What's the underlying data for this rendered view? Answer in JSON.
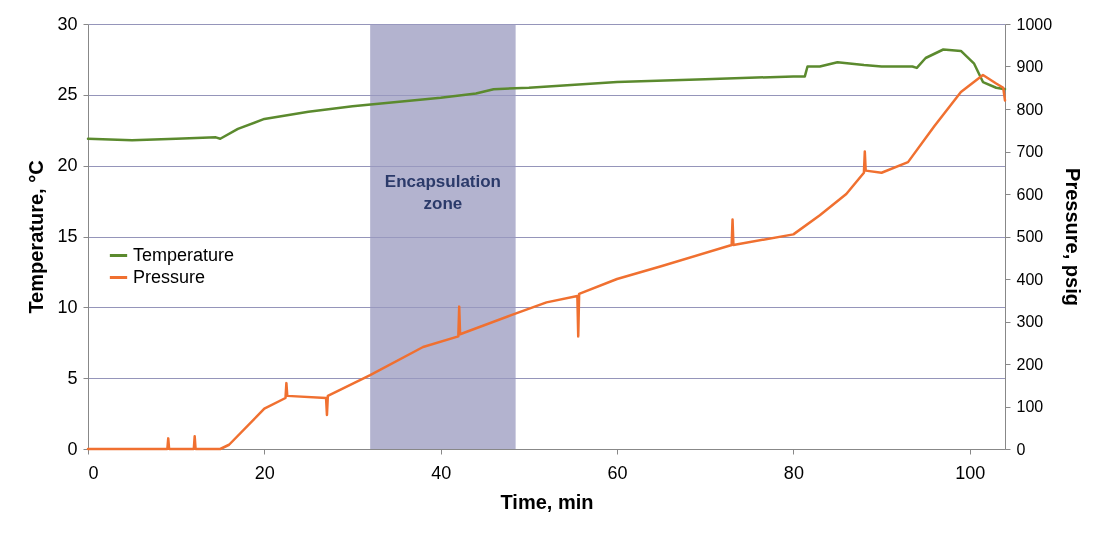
{
  "chart_data": {
    "type": "line",
    "xlabel": "Time, min",
    "ylabel": "Temperature, °C",
    "y2label": "Pressure, psig",
    "xlim": [
      0,
      104
    ],
    "xticks": [
      0,
      20,
      40,
      60,
      80,
      100
    ],
    "ylim": [
      0,
      30
    ],
    "yticks": [
      0,
      5,
      10,
      15,
      20,
      25,
      30
    ],
    "y2lim": [
      0,
      1000
    ],
    "y2ticks": [
      0,
      100,
      200,
      300,
      400,
      500,
      600,
      700,
      800,
      900,
      1000
    ],
    "grid": "y",
    "legend": "left",
    "bands": [
      {
        "axis": "x",
        "from": 32,
        "to": 48.5,
        "label": "Encapsulation zone",
        "color": "#9a9abf"
      }
    ],
    "series": [
      {
        "name": "Temperature",
        "color": "#5b8a2e",
        "x": [
          0,
          5,
          10,
          14.5,
          15,
          17,
          20,
          25,
          30,
          35,
          40,
          44,
          46,
          50,
          60,
          70,
          80,
          81.3,
          81.6,
          83,
          85,
          88,
          90,
          93.5,
          94,
          95,
          97,
          99,
          100.5,
          101.5,
          103,
          104
        ],
        "values": [
          21.9,
          21.8,
          21.9,
          22,
          21.9,
          22.6,
          23.3,
          23.8,
          24.2,
          24.5,
          24.8,
          25.1,
          25.4,
          25.5,
          25.9,
          26.1,
          26.3,
          26.3,
          27.0,
          27.0,
          27.3,
          27.1,
          27.0,
          27.0,
          26.9,
          27.6,
          28.2,
          28.1,
          27.2,
          25.9,
          25.5,
          25.4
        ]
      },
      {
        "name": "Pressure",
        "color": "#f07030",
        "axis": "y2",
        "x": [
          0,
          9,
          9.1,
          9.2,
          12,
          12.1,
          12.2,
          15,
          16,
          20,
          22.4,
          22.5,
          22.6,
          27,
          27.1,
          27.2,
          32,
          38,
          42,
          42.1,
          42.2,
          48,
          52,
          55.5,
          55.6,
          55.7,
          60,
          65,
          73,
          73.1,
          73.2,
          80,
          83,
          86,
          88,
          88.1,
          88.2,
          90,
          93,
          96,
          99,
          101.5,
          103,
          103.8,
          104
        ],
        "values": [
          0,
          0,
          25,
          0,
          0,
          30,
          0,
          0,
          10,
          95,
          120,
          155,
          125,
          120,
          80,
          125,
          174,
          240,
          265,
          335,
          270,
          315,
          345,
          360,
          265,
          365,
          400,
          430,
          480,
          540,
          480,
          505,
          550,
          600,
          650,
          700,
          655,
          650,
          675,
          760,
          840,
          880,
          860,
          850,
          820
        ]
      }
    ]
  }
}
